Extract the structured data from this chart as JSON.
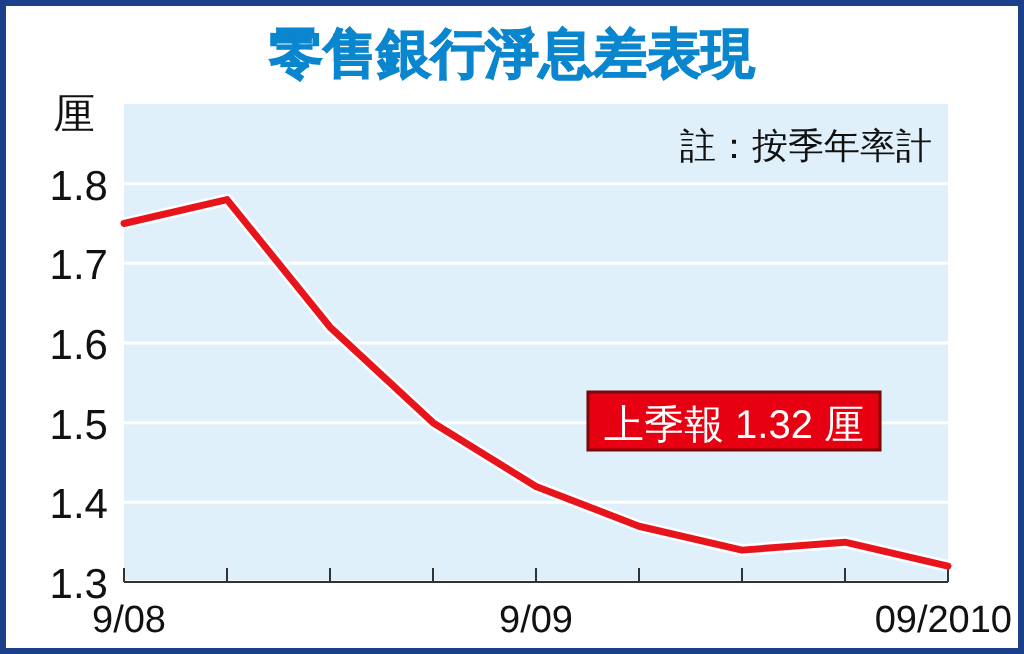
{
  "chart_data": {
    "type": "line",
    "title": "零售銀行淨息差表現",
    "ylabel": "厘",
    "categories": [
      "9/08",
      null,
      null,
      null,
      "9/09",
      null,
      null,
      null,
      "09/2010"
    ],
    "series": [
      {
        "color": "#e8141c",
        "values": [
          1.75,
          1.78,
          1.62,
          1.5,
          1.42,
          1.37,
          1.34,
          1.35,
          1.32
        ]
      }
    ],
    "ylim": [
      1.3,
      1.9
    ],
    "yticks": [
      1.3,
      1.4,
      1.5,
      1.6,
      1.7,
      1.8
    ],
    "grid": "y",
    "marker": "none",
    "line_style": "solid",
    "annotations": [
      "註：按季年率計",
      "上季報 1.32 厘"
    ]
  }
}
